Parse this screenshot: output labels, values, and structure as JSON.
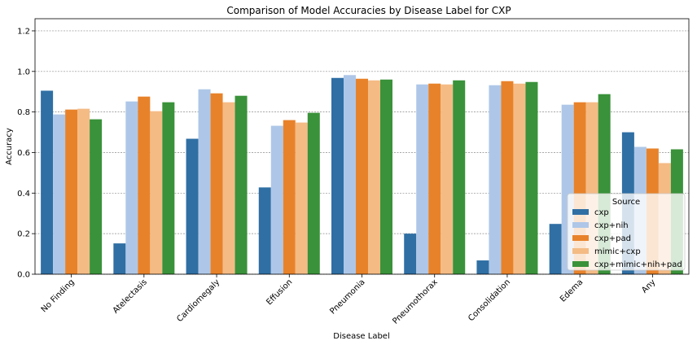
{
  "chart_data": {
    "type": "bar",
    "title": "Comparison of Model Accuracies by Disease Label for CXP",
    "xlabel": "Disease Label",
    "ylabel": "Accuracy",
    "ylim": [
      0,
      1.26
    ],
    "yticks": [
      "0.0",
      "0.2",
      "0.4",
      "0.6",
      "0.8",
      "1.0",
      "1.2"
    ],
    "grid": "horizontal dashed",
    "legend_title": "Source",
    "legend_position": "lower-right",
    "categories": [
      "No Finding",
      "Atelectasis",
      "Cardiomegaly",
      "Effusion",
      "Pneumonia",
      "Pneumothorax",
      "Consolidation",
      "Edema",
      "Any"
    ],
    "series": [
      {
        "name": "cxp",
        "color": "#2f6fa4",
        "values": [
          0.905,
          0.152,
          0.668,
          0.428,
          0.968,
          0.2,
          0.068,
          0.248,
          0.7
        ]
      },
      {
        "name": "cxp+nih",
        "color": "#aec7e8",
        "values": [
          0.788,
          0.852,
          0.912,
          0.732,
          0.982,
          0.936,
          0.932,
          0.836,
          0.628
        ]
      },
      {
        "name": "cxp+pad",
        "color": "#e8822a",
        "values": [
          0.812,
          0.876,
          0.892,
          0.76,
          0.964,
          0.94,
          0.952,
          0.848,
          0.62
        ]
      },
      {
        "name": "mimic+cxp",
        "color": "#f4bb85",
        "values": [
          0.816,
          0.804,
          0.848,
          0.748,
          0.956,
          0.936,
          0.94,
          0.848,
          0.548
        ]
      },
      {
        "name": "cxp+mimic+nih+pad",
        "color": "#3a923a",
        "values": [
          0.764,
          0.848,
          0.88,
          0.796,
          0.96,
          0.956,
          0.948,
          0.888,
          0.616
        ]
      }
    ]
  }
}
